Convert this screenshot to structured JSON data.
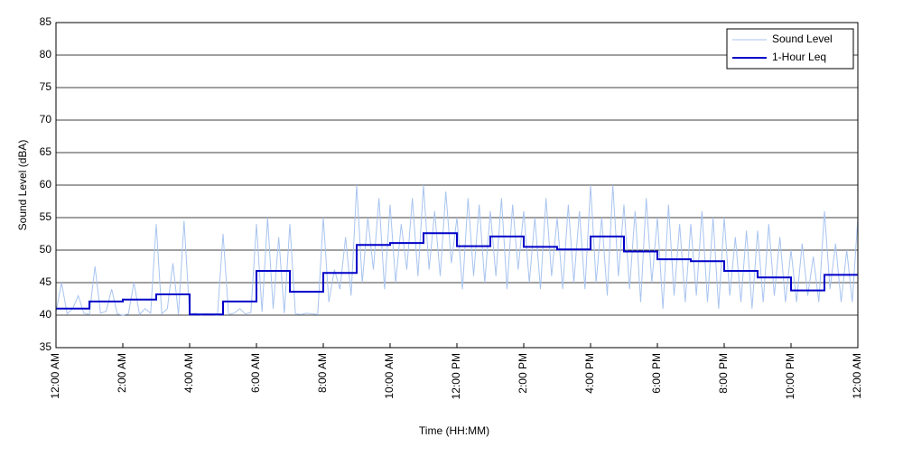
{
  "chart_data": {
    "type": "line",
    "xlabel": "Time (HH:MM)",
    "ylabel": "Sound Level (dBA)",
    "xlim": [
      0,
      1440
    ],
    "ylim": [
      35,
      85
    ],
    "xticks": [
      {
        "value": 0,
        "label": "12:00 AM"
      },
      {
        "value": 120,
        "label": "2:00 AM"
      },
      {
        "value": 240,
        "label": "4:00 AM"
      },
      {
        "value": 360,
        "label": "6:00 AM"
      },
      {
        "value": 480,
        "label": "8:00 AM"
      },
      {
        "value": 600,
        "label": "10:00 AM"
      },
      {
        "value": 720,
        "label": "12:00 PM"
      },
      {
        "value": 840,
        "label": "2:00 PM"
      },
      {
        "value": 960,
        "label": "4:00 PM"
      },
      {
        "value": 1080,
        "label": "6:00 PM"
      },
      {
        "value": 1200,
        "label": "8:00 PM"
      },
      {
        "value": 1320,
        "label": "10:00 PM"
      },
      {
        "value": 1440,
        "label": "12:00 AM"
      }
    ],
    "yticks": [
      35,
      40,
      45,
      50,
      55,
      60,
      65,
      70,
      75,
      80,
      85
    ],
    "grid": true,
    "legend": "upper right",
    "series": [
      {
        "name": "Sound Level",
        "color": "#a8c4f0",
        "step": false,
        "x": [
          0,
          10,
          20,
          30,
          40,
          50,
          60,
          70,
          80,
          90,
          100,
          110,
          120,
          130,
          140,
          150,
          160,
          170,
          180,
          190,
          200,
          210,
          220,
          230,
          240,
          250,
          260,
          270,
          280,
          290,
          300,
          310,
          320,
          330,
          340,
          350,
          360,
          370,
          380,
          390,
          400,
          410,
          420,
          430,
          440,
          450,
          460,
          470,
          480,
          490,
          500,
          510,
          520,
          530,
          540,
          550,
          560,
          570,
          580,
          590,
          600,
          610,
          620,
          630,
          640,
          650,
          660,
          670,
          680,
          690,
          700,
          710,
          720,
          730,
          740,
          750,
          760,
          770,
          780,
          790,
          800,
          810,
          820,
          830,
          840,
          850,
          860,
          870,
          880,
          890,
          900,
          910,
          920,
          930,
          940,
          950,
          960,
          970,
          980,
          990,
          1000,
          1010,
          1020,
          1030,
          1040,
          1050,
          1060,
          1070,
          1080,
          1090,
          1100,
          1110,
          1120,
          1130,
          1140,
          1150,
          1160,
          1170,
          1180,
          1190,
          1200,
          1210,
          1220,
          1230,
          1240,
          1250,
          1260,
          1270,
          1280,
          1290,
          1300,
          1310,
          1320,
          1330,
          1340,
          1350,
          1360,
          1370,
          1380,
          1390,
          1400,
          1410,
          1420,
          1430,
          1440
        ],
        "values": [
          40.5,
          45,
          40.2,
          41,
          43,
          40.3,
          40.1,
          47.5,
          40.3,
          40.6,
          44,
          40.2,
          40,
          40.2,
          45,
          40.1,
          41,
          40.3,
          54,
          40.2,
          41,
          48,
          40.1,
          54.5,
          40.1,
          40.3,
          40,
          40.2,
          40.1,
          40,
          52.5,
          40.1,
          40.3,
          41,
          40.2,
          40.4,
          54,
          40.5,
          55,
          41,
          52,
          40.3,
          54,
          40.2,
          40.1,
          40.3,
          40.2,
          40.1,
          55,
          42,
          47,
          44,
          52,
          43,
          60,
          45,
          55,
          47,
          58,
          44,
          57,
          45,
          54,
          47,
          58,
          46,
          60,
          47,
          56,
          46,
          59,
          48,
          55,
          44,
          58,
          46,
          57,
          45,
          56,
          46,
          58,
          44,
          57,
          47,
          56,
          45,
          55,
          44,
          58,
          46,
          55,
          44,
          57,
          45,
          56,
          44,
          60,
          45,
          55,
          43,
          60,
          46,
          57,
          44,
          56,
          42,
          58,
          45,
          55,
          41,
          57,
          43,
          54,
          42,
          54,
          43,
          56,
          42,
          55,
          41,
          55,
          43,
          52,
          42,
          53,
          41,
          53,
          42,
          54,
          43,
          52,
          42,
          50,
          42,
          51,
          43,
          49,
          42,
          56,
          44,
          51,
          42,
          50,
          42,
          55
        ]
      },
      {
        "name": "1-Hour Leq",
        "color": "#0000c8",
        "step": true,
        "x": [
          0,
          60,
          120,
          180,
          240,
          300,
          360,
          420,
          480,
          540,
          600,
          660,
          720,
          780,
          840,
          900,
          960,
          1020,
          1080,
          1140,
          1200,
          1260,
          1320,
          1380
        ],
        "values": [
          41,
          42.1,
          42.4,
          43.2,
          40.1,
          42.1,
          46.8,
          43.6,
          46.5,
          50.8,
          51.1,
          52.6,
          50.6,
          52.1,
          50.5,
          50.1,
          52.1,
          49.8,
          48.6,
          48.3,
          46.8,
          45.8,
          43.8,
          46.2
        ]
      }
    ]
  }
}
